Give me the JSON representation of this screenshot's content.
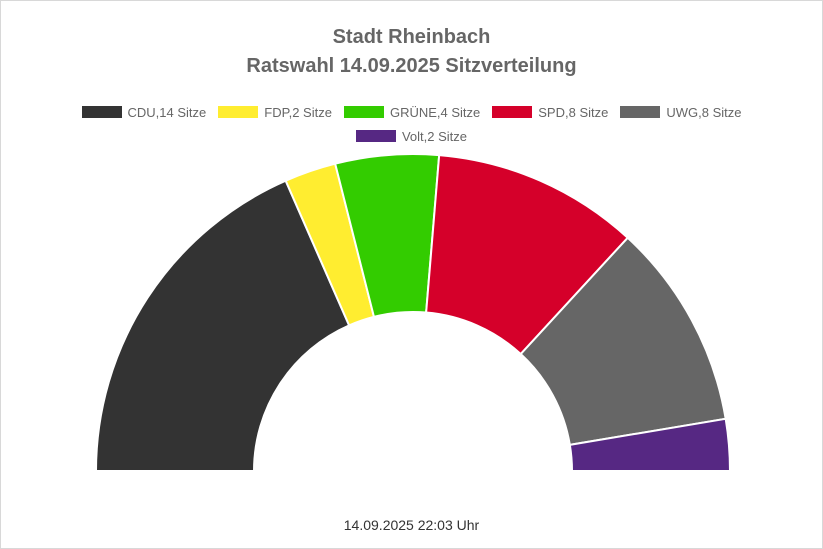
{
  "chart_data": {
    "type": "pie",
    "variant": "half-donut",
    "title": "Stadt Rheinbach",
    "subtitle": "Ratswahl 14.09.2025 Sitzverteilung",
    "legend_position": "top",
    "series": [
      {
        "name": "CDU",
        "label": "CDU,14 Sitze",
        "value": 14,
        "color": "#333333"
      },
      {
        "name": "FDP",
        "label": "FDP,2 Sitze",
        "value": 2,
        "color": "#FFED30"
      },
      {
        "name": "GRÜNE",
        "label": "GRÜNE,4 Sitze",
        "value": 4,
        "color": "#33CC00"
      },
      {
        "name": "SPD",
        "label": "SPD,8 Sitze",
        "value": 8,
        "color": "#D5002A"
      },
      {
        "name": "UWG",
        "label": "UWG,8 Sitze",
        "value": 8,
        "color": "#666666"
      },
      {
        "name": "Volt",
        "label": "Volt,2 Sitze",
        "value": 2,
        "color": "#562883"
      }
    ]
  },
  "timestamp": "14.09.2025 22:03 Uhr"
}
